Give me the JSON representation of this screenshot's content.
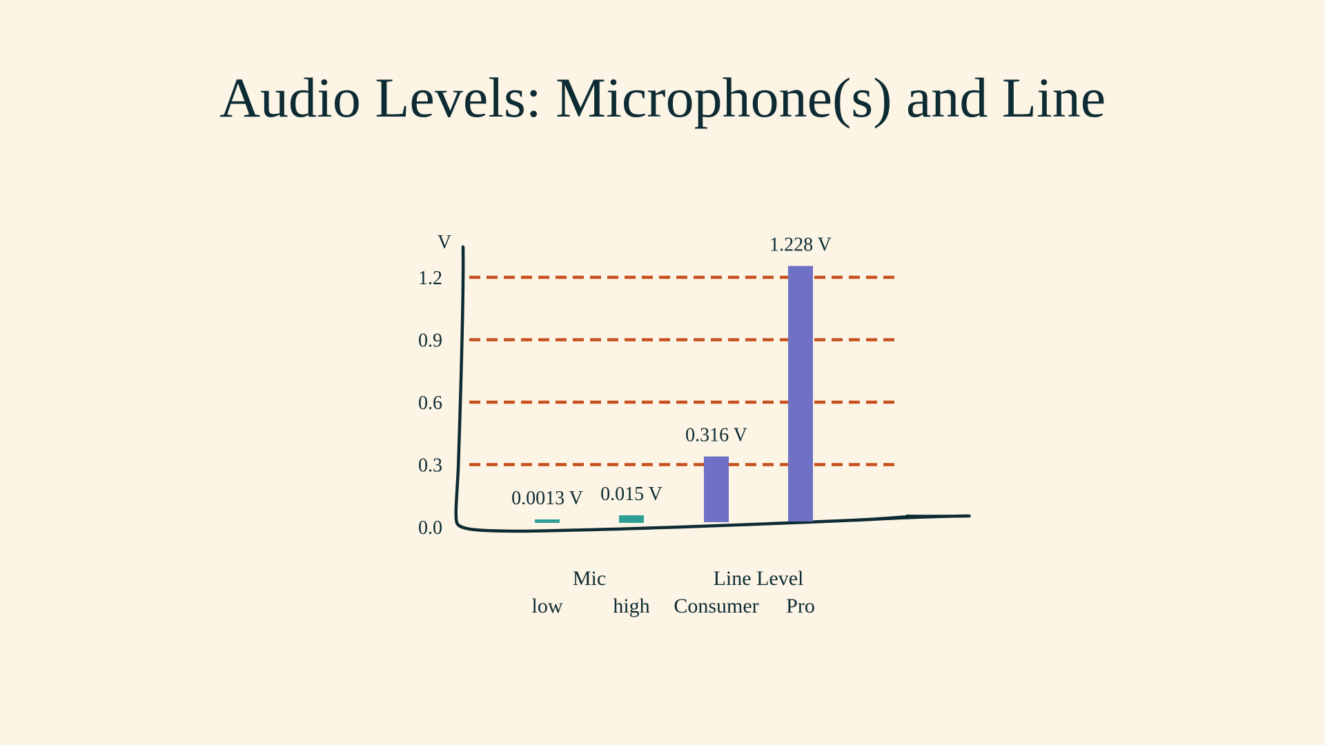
{
  "title": "Audio Levels: Microphone(s) and Line",
  "colors": {
    "background": "#fcf4e4",
    "text": "#0d2b33",
    "axis": "#0d2b33",
    "gridline": "#c8501f",
    "mic_bar": "#2f9e94",
    "line_bar": "#6e71c4"
  },
  "chart_data": {
    "type": "bar",
    "y_unit_label": "V",
    "ylim": [
      0,
      1.2
    ],
    "yticks": [
      "0.0",
      "0.3",
      "0.6",
      "0.9",
      "1.2"
    ],
    "ytick_values": [
      0,
      0.3,
      0.6,
      0.9,
      1.2
    ],
    "gridlines": "dashed at 0.3, 0.6, 0.9, 1.2",
    "groups": [
      {
        "label": "Mic",
        "categories": [
          "low",
          "high"
        ]
      },
      {
        "label": "Line Level",
        "categories": [
          "Consumer",
          "Pro"
        ]
      }
    ],
    "categories": [
      "low",
      "high",
      "Consumer",
      "Pro"
    ],
    "values": [
      0.0013,
      0.015,
      0.316,
      1.228
    ],
    "data_labels": [
      "0.0013 V",
      "0.015 V",
      "0.316 V",
      "1.228 V"
    ],
    "bar_color_keys": [
      "mic_bar",
      "mic_bar",
      "line_bar",
      "line_bar"
    ]
  }
}
